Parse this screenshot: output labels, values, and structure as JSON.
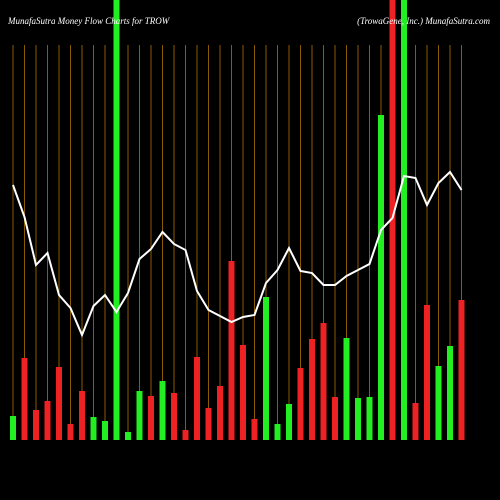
{
  "chart_data": {
    "type": "bar",
    "title": "MunafaSutra  Money Flow  Charts for TROW",
    "subtitle": "(TrowaGene,  Inc.) MunafaSutra.com",
    "ylim": [
      0,
      440
    ],
    "series": [
      {
        "type": "bar",
        "values": [
          24,
          82,
          30,
          39,
          73,
          16,
          49,
          23,
          19,
          440,
          8,
          49,
          44,
          59,
          47,
          10,
          83,
          32,
          54,
          179,
          95,
          21,
          143,
          16,
          36,
          72,
          101,
          117,
          43,
          102,
          42,
          43,
          325,
          440,
          440,
          37,
          135,
          74,
          94,
          140
        ],
        "colors": [
          "#22ee22",
          "#ee2222",
          "#ee2222",
          "#ee2222",
          "#ee2222",
          "#ee2222",
          "#ee2222",
          "#22ee22",
          "#22ee22",
          "#22ee22",
          "#22ee22",
          "#22ee22",
          "#ee2222",
          "#22ee22",
          "#ee2222",
          "#ee2222",
          "#ee2222",
          "#ee2222",
          "#ee2222",
          "#ee2222",
          "#ee2222",
          "#ee2222",
          "#22ee22",
          "#22ee22",
          "#22ee22",
          "#ee2222",
          "#ee2222",
          "#ee2222",
          "#ee2222",
          "#22ee22",
          "#22ee22",
          "#22ee22",
          "#22ee22",
          "#ee2222",
          "#22ee22",
          "#ee2222",
          "#ee2222",
          "#22ee22",
          "#22ee22",
          "#ee2222"
        ]
      },
      {
        "type": "line",
        "color": "#ffffff",
        "values": [
          255,
          223,
          175,
          187,
          145,
          132,
          105,
          134,
          145,
          128,
          147,
          181,
          191,
          208,
          196,
          190,
          149,
          130,
          124,
          118,
          123,
          125,
          157,
          170,
          192,
          169,
          167,
          155,
          155,
          164,
          170,
          176,
          210,
          222,
          264,
          262,
          235,
          257,
          268,
          250
        ]
      }
    ]
  }
}
